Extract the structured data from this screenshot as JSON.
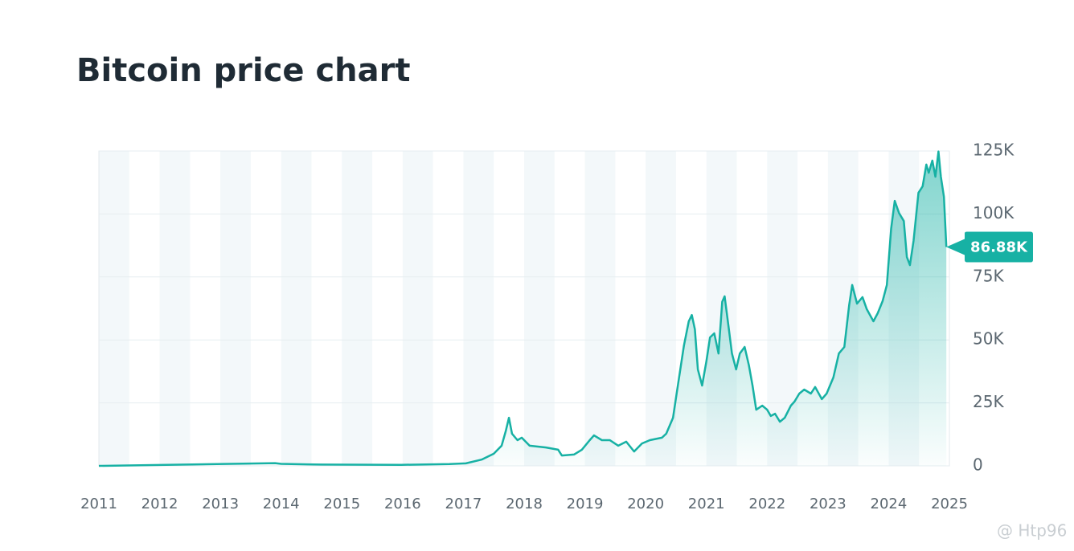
{
  "chart_data": {
    "type": "area-line",
    "title": "Bitcoin price chart",
    "color": "#17b1a4",
    "x": [
      2011.0,
      2013.9,
      2014.0,
      2014.66,
      2015.98,
      2016.77,
      2017.04,
      2017.3,
      2017.5,
      2017.63,
      2017.7,
      2017.75,
      2017.8,
      2017.89,
      2017.96,
      2018.09,
      2018.36,
      2018.56,
      2018.62,
      2018.82,
      2018.95,
      2019.08,
      2019.15,
      2019.28,
      2019.41,
      2019.55,
      2019.68,
      2019.81,
      2019.94,
      2020.07,
      2020.27,
      2020.34,
      2020.45,
      2020.51,
      2020.56,
      2020.63,
      2020.71,
      2020.76,
      2020.81,
      2020.86,
      2020.93,
      2021.0,
      2021.06,
      2021.13,
      2021.2,
      2021.26,
      2021.3,
      2021.37,
      2021.42,
      2021.49,
      2021.55,
      2021.63,
      2021.7,
      2021.76,
      2021.82,
      2021.92,
      2022.0,
      2022.06,
      2022.13,
      2022.21,
      2022.29,
      2022.39,
      2022.45,
      2022.53,
      2022.61,
      2022.72,
      2022.79,
      2022.9,
      2022.98,
      2023.09,
      2023.18,
      2023.27,
      2023.35,
      2023.4,
      2023.48,
      2023.57,
      2023.64,
      2023.75,
      2023.82,
      2023.9,
      2023.97,
      2024.04,
      2024.1,
      2024.17,
      2024.25,
      2024.3,
      2024.35,
      2024.41,
      2024.49,
      2024.56,
      2024.62,
      2024.66,
      2024.72,
      2024.77,
      2024.82,
      2024.86,
      2024.91,
      2024.95
    ],
    "values": [
      1,
      1100,
      800,
      500,
      430,
      700,
      1000,
      2500,
      4800,
      8000,
      14000,
      19100,
      12800,
      10200,
      11200,
      8000,
      7300,
      6400,
      4100,
      4500,
      6400,
      10200,
      12100,
      10200,
      10200,
      8000,
      9600,
      5700,
      8900,
      10200,
      11200,
      12800,
      19100,
      28700,
      36700,
      47800,
      57400,
      59900,
      54200,
      38300,
      31900,
      41500,
      51000,
      52600,
      44600,
      65100,
      67300,
      54200,
      44600,
      38300,
      44600,
      47200,
      39900,
      31900,
      22300,
      23900,
      22300,
      19800,
      20700,
      17500,
      19100,
      23900,
      25500,
      28700,
      30300,
      28700,
      31300,
      26500,
      28700,
      35100,
      44600,
      47200,
      63800,
      71800,
      64400,
      67000,
      62200,
      57400,
      60600,
      65400,
      71800,
      94100,
      105200,
      100400,
      97200,
      82900,
      79700,
      89300,
      108400,
      111000,
      119600,
      116400,
      121200,
      114800,
      124800,
      114800,
      106800,
      86880
    ],
    "xlim": [
      2011,
      2025
    ],
    "xticks": [
      2011,
      2012,
      2013,
      2014,
      2015,
      2016,
      2017,
      2018,
      2019,
      2020,
      2021,
      2022,
      2023,
      2024,
      2025
    ],
    "ylim": [
      0,
      125000
    ],
    "yticks": [
      0,
      {
        "value": 25000,
        "label": "25K"
      },
      {
        "value": 50000,
        "label": "50K"
      },
      {
        "value": 75000,
        "label": "75K"
      },
      {
        "value": 100000,
        "label": "100K"
      },
      {
        "value": 125000,
        "label": "125K"
      }
    ],
    "grid": true,
    "annotations": [
      {
        "text": "86.88K",
        "x": 2024.95,
        "y": 86880
      }
    ]
  },
  "watermark": "@ Htp96"
}
